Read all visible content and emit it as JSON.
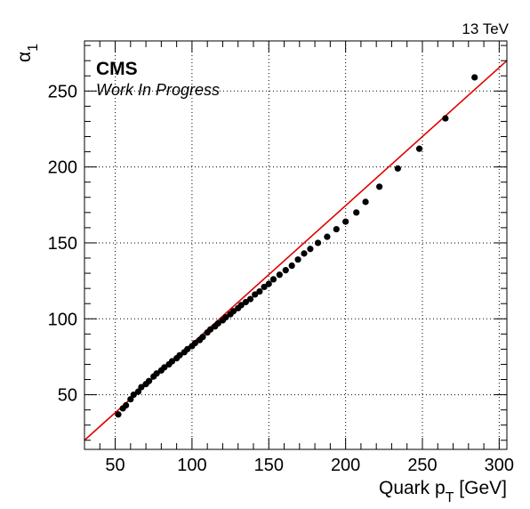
{
  "chart_data": {
    "type": "scatter",
    "energy_label": "13 TeV",
    "experiment": "CMS",
    "status": "Work In Progress",
    "xlabel": "Quark p",
    "xlabel_sub": "T",
    "xlabel_unit": " [GeV]",
    "ylabel": "α",
    "ylabel_sub": "1",
    "xlim": [
      30,
      305
    ],
    "ylim": [
      14,
      283
    ],
    "x_ticks": [
      50,
      100,
      150,
      200,
      250,
      300
    ],
    "y_ticks": [
      50,
      100,
      150,
      200,
      250
    ],
    "grid": true,
    "colors": {
      "points": "#000000",
      "fit": "#e00000",
      "grid": "#000000"
    },
    "fit_line": {
      "x": [
        30,
        305
      ],
      "y": [
        20,
        270
      ]
    },
    "points": [
      {
        "x": 52,
        "y": 37
      },
      {
        "x": 55,
        "y": 41
      },
      {
        "x": 57,
        "y": 43
      },
      {
        "x": 60,
        "y": 47
      },
      {
        "x": 62,
        "y": 50
      },
      {
        "x": 65,
        "y": 52
      },
      {
        "x": 67,
        "y": 55
      },
      {
        "x": 70,
        "y": 57
      },
      {
        "x": 72,
        "y": 59
      },
      {
        "x": 75,
        "y": 62
      },
      {
        "x": 77,
        "y": 64
      },
      {
        "x": 80,
        "y": 66
      },
      {
        "x": 82,
        "y": 68
      },
      {
        "x": 85,
        "y": 70
      },
      {
        "x": 87,
        "y": 72
      },
      {
        "x": 90,
        "y": 74
      },
      {
        "x": 92,
        "y": 76
      },
      {
        "x": 95,
        "y": 78
      },
      {
        "x": 97,
        "y": 80
      },
      {
        "x": 100,
        "y": 82
      },
      {
        "x": 102,
        "y": 84
      },
      {
        "x": 105,
        "y": 86
      },
      {
        "x": 107,
        "y": 88
      },
      {
        "x": 110,
        "y": 91
      },
      {
        "x": 112,
        "y": 93
      },
      {
        "x": 115,
        "y": 95
      },
      {
        "x": 117,
        "y": 97
      },
      {
        "x": 120,
        "y": 99
      },
      {
        "x": 122,
        "y": 101
      },
      {
        "x": 125,
        "y": 103
      },
      {
        "x": 127,
        "y": 105
      },
      {
        "x": 130,
        "y": 107
      },
      {
        "x": 132,
        "y": 109
      },
      {
        "x": 135,
        "y": 111
      },
      {
        "x": 138,
        "y": 113
      },
      {
        "x": 141,
        "y": 116
      },
      {
        "x": 144,
        "y": 118
      },
      {
        "x": 147,
        "y": 121
      },
      {
        "x": 150,
        "y": 123
      },
      {
        "x": 153,
        "y": 126
      },
      {
        "x": 157,
        "y": 129
      },
      {
        "x": 161,
        "y": 132
      },
      {
        "x": 165,
        "y": 135
      },
      {
        "x": 169,
        "y": 139
      },
      {
        "x": 173,
        "y": 143
      },
      {
        "x": 177,
        "y": 146
      },
      {
        "x": 182,
        "y": 150
      },
      {
        "x": 188,
        "y": 154
      },
      {
        "x": 194,
        "y": 159
      },
      {
        "x": 200,
        "y": 164
      },
      {
        "x": 207,
        "y": 170
      },
      {
        "x": 213,
        "y": 177
      },
      {
        "x": 222,
        "y": 187
      },
      {
        "x": 234,
        "y": 199
      },
      {
        "x": 248,
        "y": 212
      },
      {
        "x": 265,
        "y": 232
      },
      {
        "x": 284,
        "y": 259
      }
    ]
  }
}
